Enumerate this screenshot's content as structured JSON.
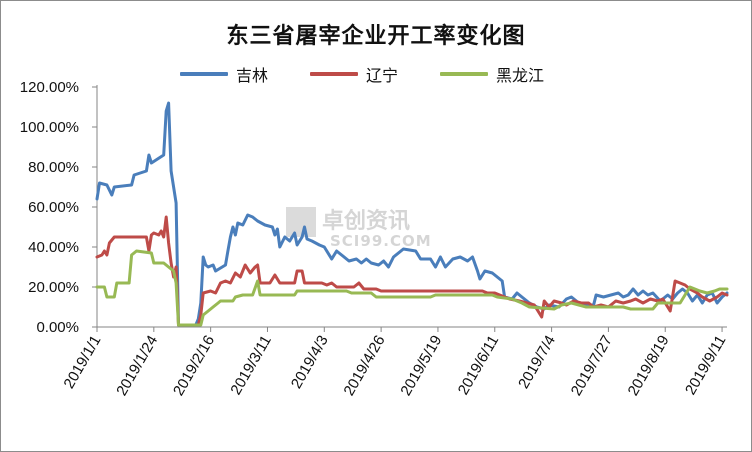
{
  "chart_data": {
    "type": "line",
    "title": "东三省屠宰企业开工率变化图",
    "xlabel": "",
    "ylabel": "",
    "ylim": [
      0,
      1.2
    ],
    "yticks": [
      "0.00%",
      "20.00%",
      "40.00%",
      "60.00%",
      "80.00%",
      "100.00%",
      "120.00%"
    ],
    "xrange": [
      "2019-01-01",
      "2019-09-13"
    ],
    "xticks": [
      "2019/1/1",
      "2019/1/24",
      "2019/2/16",
      "2019/3/11",
      "2019/4/3",
      "2019/4/26",
      "2019/5/19",
      "2019/6/11",
      "2019/7/4",
      "2019/7/27",
      "2019/8/19",
      "2019/9/11"
    ],
    "grid": false,
    "legend_position": "top",
    "watermark": {
      "cn": "卓创资讯",
      "en": "SCI99.COM"
    },
    "series": [
      {
        "name": "吉林",
        "color": "#4a7ebb",
        "points": [
          [
            "2019-01-01",
            0.64
          ],
          [
            "2019-01-02",
            0.72
          ],
          [
            "2019-01-05",
            0.71
          ],
          [
            "2019-01-07",
            0.66
          ],
          [
            "2019-01-08",
            0.7
          ],
          [
            "2019-01-15",
            0.71
          ],
          [
            "2019-01-16",
            0.76
          ],
          [
            "2019-01-21",
            0.78
          ],
          [
            "2019-01-22",
            0.86
          ],
          [
            "2019-01-23",
            0.82
          ],
          [
            "2019-01-28",
            0.86
          ],
          [
            "2019-01-29",
            1.08
          ],
          [
            "2019-01-30",
            1.12
          ],
          [
            "2019-01-31",
            0.78
          ],
          [
            "2019-02-02",
            0.62
          ],
          [
            "2019-02-03",
            0.01
          ],
          [
            "2019-02-10",
            0.01
          ],
          [
            "2019-02-11",
            0.04
          ],
          [
            "2019-02-12",
            0.12
          ],
          [
            "2019-02-13",
            0.35
          ],
          [
            "2019-02-14",
            0.31
          ],
          [
            "2019-02-15",
            0.3
          ],
          [
            "2019-02-17",
            0.31
          ],
          [
            "2019-02-18",
            0.28
          ],
          [
            "2019-02-22",
            0.31
          ],
          [
            "2019-02-23",
            0.38
          ],
          [
            "2019-02-24",
            0.45
          ],
          [
            "2019-02-25",
            0.5
          ],
          [
            "2019-02-26",
            0.46
          ],
          [
            "2019-02-27",
            0.52
          ],
          [
            "2019-03-01",
            0.51
          ],
          [
            "2019-03-03",
            0.56
          ],
          [
            "2019-03-05",
            0.55
          ],
          [
            "2019-03-07",
            0.53
          ],
          [
            "2019-03-10",
            0.51
          ],
          [
            "2019-03-13",
            0.5
          ],
          [
            "2019-03-14",
            0.46
          ],
          [
            "2019-03-15",
            0.49
          ],
          [
            "2019-03-16",
            0.4
          ],
          [
            "2019-03-18",
            0.45
          ],
          [
            "2019-03-20",
            0.43
          ],
          [
            "2019-03-22",
            0.47
          ],
          [
            "2019-03-23",
            0.41
          ],
          [
            "2019-03-25",
            0.45
          ],
          [
            "2019-03-26",
            0.5
          ],
          [
            "2019-03-27",
            0.44
          ],
          [
            "2019-03-29",
            0.43
          ],
          [
            "2019-04-01",
            0.41
          ],
          [
            "2019-04-03",
            0.4
          ],
          [
            "2019-04-06",
            0.34
          ],
          [
            "2019-04-08",
            0.38
          ],
          [
            "2019-04-10",
            0.36
          ],
          [
            "2019-04-13",
            0.33
          ],
          [
            "2019-04-16",
            0.34
          ],
          [
            "2019-04-18",
            0.32
          ],
          [
            "2019-04-20",
            0.34
          ],
          [
            "2019-04-22",
            0.32
          ],
          [
            "2019-04-25",
            0.31
          ],
          [
            "2019-04-27",
            0.33
          ],
          [
            "2019-04-29",
            0.3
          ],
          [
            "2019-05-01",
            0.35
          ],
          [
            "2019-05-05",
            0.39
          ],
          [
            "2019-05-10",
            0.38
          ],
          [
            "2019-05-12",
            0.34
          ],
          [
            "2019-05-16",
            0.34
          ],
          [
            "2019-05-18",
            0.3
          ],
          [
            "2019-05-20",
            0.35
          ],
          [
            "2019-05-22",
            0.3
          ],
          [
            "2019-05-25",
            0.34
          ],
          [
            "2019-05-28",
            0.35
          ],
          [
            "2019-05-31",
            0.33
          ],
          [
            "2019-06-02",
            0.35
          ],
          [
            "2019-06-04",
            0.28
          ],
          [
            "2019-06-05",
            0.24
          ],
          [
            "2019-06-07",
            0.28
          ],
          [
            "2019-06-10",
            0.27
          ],
          [
            "2019-06-14",
            0.23
          ],
          [
            "2019-06-15",
            0.15
          ],
          [
            "2019-06-18",
            0.14
          ],
          [
            "2019-06-20",
            0.17
          ],
          [
            "2019-06-22",
            0.15
          ],
          [
            "2019-06-25",
            0.12
          ],
          [
            "2019-06-28",
            0.1
          ],
          [
            "2019-07-01",
            0.09
          ],
          [
            "2019-07-03",
            0.11
          ],
          [
            "2019-07-07",
            0.1
          ],
          [
            "2019-07-10",
            0.14
          ],
          [
            "2019-07-12",
            0.15
          ],
          [
            "2019-07-15",
            0.12
          ],
          [
            "2019-07-18",
            0.11
          ],
          [
            "2019-07-21",
            0.11
          ],
          [
            "2019-07-22",
            0.16
          ],
          [
            "2019-07-25",
            0.15
          ],
          [
            "2019-07-28",
            0.16
          ],
          [
            "2019-07-31",
            0.17
          ],
          [
            "2019-08-02",
            0.15
          ],
          [
            "2019-08-04",
            0.16
          ],
          [
            "2019-08-06",
            0.19
          ],
          [
            "2019-08-08",
            0.16
          ],
          [
            "2019-08-10",
            0.18
          ],
          [
            "2019-08-12",
            0.16
          ],
          [
            "2019-08-14",
            0.17
          ],
          [
            "2019-08-17",
            0.13
          ],
          [
            "2019-08-20",
            0.16
          ],
          [
            "2019-08-22",
            0.14
          ],
          [
            "2019-08-24",
            0.17
          ],
          [
            "2019-08-26",
            0.19
          ],
          [
            "2019-08-28",
            0.17
          ],
          [
            "2019-08-30",
            0.13
          ],
          [
            "2019-09-01",
            0.16
          ],
          [
            "2019-09-03",
            0.12
          ],
          [
            "2019-09-05",
            0.16
          ],
          [
            "2019-09-07",
            0.17
          ],
          [
            "2019-09-09",
            0.12
          ],
          [
            "2019-09-11",
            0.15
          ],
          [
            "2019-09-13",
            0.17
          ]
        ]
      },
      {
        "name": "辽宁",
        "color": "#be4b48",
        "points": [
          [
            "2019-01-01",
            0.35
          ],
          [
            "2019-01-03",
            0.36
          ],
          [
            "2019-01-04",
            0.38
          ],
          [
            "2019-01-05",
            0.36
          ],
          [
            "2019-01-06",
            0.42
          ],
          [
            "2019-01-08",
            0.45
          ],
          [
            "2019-01-21",
            0.45
          ],
          [
            "2019-01-22",
            0.38
          ],
          [
            "2019-01-23",
            0.46
          ],
          [
            "2019-01-24",
            0.47
          ],
          [
            "2019-01-26",
            0.46
          ],
          [
            "2019-01-27",
            0.48
          ],
          [
            "2019-01-28",
            0.45
          ],
          [
            "2019-01-29",
            0.55
          ],
          [
            "2019-01-30",
            0.42
          ],
          [
            "2019-01-31",
            0.32
          ],
          [
            "2019-02-01",
            0.25
          ],
          [
            "2019-02-02",
            0.3
          ],
          [
            "2019-02-03",
            0.01
          ],
          [
            "2019-02-11",
            0.01
          ],
          [
            "2019-02-12",
            0.06
          ],
          [
            "2019-02-13",
            0.17
          ],
          [
            "2019-02-16",
            0.18
          ],
          [
            "2019-02-18",
            0.17
          ],
          [
            "2019-02-20",
            0.22
          ],
          [
            "2019-02-22",
            0.23
          ],
          [
            "2019-02-24",
            0.22
          ],
          [
            "2019-02-26",
            0.27
          ],
          [
            "2019-02-28",
            0.25
          ],
          [
            "2019-03-02",
            0.31
          ],
          [
            "2019-03-04",
            0.27
          ],
          [
            "2019-03-06",
            0.3
          ],
          [
            "2019-03-07",
            0.31
          ],
          [
            "2019-03-08",
            0.22
          ],
          [
            "2019-03-12",
            0.22
          ],
          [
            "2019-03-14",
            0.26
          ],
          [
            "2019-03-16",
            0.22
          ],
          [
            "2019-03-22",
            0.22
          ],
          [
            "2019-03-23",
            0.28
          ],
          [
            "2019-03-25",
            0.28
          ],
          [
            "2019-03-26",
            0.22
          ],
          [
            "2019-04-02",
            0.22
          ],
          [
            "2019-04-04",
            0.21
          ],
          [
            "2019-04-06",
            0.22
          ],
          [
            "2019-04-08",
            0.2
          ],
          [
            "2019-04-15",
            0.2
          ],
          [
            "2019-04-17",
            0.22
          ],
          [
            "2019-04-19",
            0.19
          ],
          [
            "2019-04-24",
            0.19
          ],
          [
            "2019-04-26",
            0.18
          ],
          [
            "2019-05-01",
            0.18
          ],
          [
            "2019-06-06",
            0.18
          ],
          [
            "2019-06-08",
            0.17
          ],
          [
            "2019-06-11",
            0.17
          ],
          [
            "2019-06-13",
            0.16
          ],
          [
            "2019-06-17",
            0.14
          ],
          [
            "2019-06-21",
            0.13
          ],
          [
            "2019-06-24",
            0.12
          ],
          [
            "2019-06-27",
            0.11
          ],
          [
            "2019-06-30",
            0.05
          ],
          [
            "2019-07-01",
            0.13
          ],
          [
            "2019-07-03",
            0.1
          ],
          [
            "2019-07-05",
            0.13
          ],
          [
            "2019-07-08",
            0.12
          ],
          [
            "2019-07-10",
            0.11
          ],
          [
            "2019-07-13",
            0.13
          ],
          [
            "2019-07-16",
            0.12
          ],
          [
            "2019-07-19",
            0.12
          ],
          [
            "2019-07-21",
            0.1
          ],
          [
            "2019-07-24",
            0.11
          ],
          [
            "2019-07-27",
            0.1
          ],
          [
            "2019-07-30",
            0.13
          ],
          [
            "2019-08-02",
            0.12
          ],
          [
            "2019-08-05",
            0.13
          ],
          [
            "2019-08-07",
            0.14
          ],
          [
            "2019-08-10",
            0.12
          ],
          [
            "2019-08-13",
            0.14
          ],
          [
            "2019-08-16",
            0.13
          ],
          [
            "2019-08-18",
            0.14
          ],
          [
            "2019-08-21",
            0.08
          ],
          [
            "2019-08-23",
            0.23
          ],
          [
            "2019-08-25",
            0.22
          ],
          [
            "2019-08-27",
            0.21
          ],
          [
            "2019-08-29",
            0.19
          ],
          [
            "2019-09-01",
            0.17
          ],
          [
            "2019-09-03",
            0.15
          ],
          [
            "2019-09-06",
            0.13
          ],
          [
            "2019-09-09",
            0.15
          ],
          [
            "2019-09-11",
            0.17
          ],
          [
            "2019-09-13",
            0.16
          ]
        ]
      },
      {
        "name": "黑龙江",
        "color": "#98b954",
        "points": [
          [
            "2019-01-01",
            0.2
          ],
          [
            "2019-01-04",
            0.2
          ],
          [
            "2019-01-05",
            0.15
          ],
          [
            "2019-01-08",
            0.15
          ],
          [
            "2019-01-09",
            0.22
          ],
          [
            "2019-01-14",
            0.22
          ],
          [
            "2019-01-15",
            0.36
          ],
          [
            "2019-01-17",
            0.38
          ],
          [
            "2019-01-23",
            0.37
          ],
          [
            "2019-01-24",
            0.32
          ],
          [
            "2019-01-28",
            0.32
          ],
          [
            "2019-01-30",
            0.3
          ],
          [
            "2019-02-01",
            0.28
          ],
          [
            "2019-02-02",
            0.22
          ],
          [
            "2019-02-03",
            0.01
          ],
          [
            "2019-02-12",
            0.01
          ],
          [
            "2019-02-13",
            0.06
          ],
          [
            "2019-02-15",
            0.08
          ],
          [
            "2019-02-17",
            0.1
          ],
          [
            "2019-02-19",
            0.12
          ],
          [
            "2019-02-20",
            0.13
          ],
          [
            "2019-02-25",
            0.13
          ],
          [
            "2019-02-26",
            0.15
          ],
          [
            "2019-03-01",
            0.16
          ],
          [
            "2019-03-05",
            0.16
          ],
          [
            "2019-03-07",
            0.23
          ],
          [
            "2019-03-08",
            0.16
          ],
          [
            "2019-03-22",
            0.16
          ],
          [
            "2019-03-23",
            0.18
          ],
          [
            "2019-04-12",
            0.18
          ],
          [
            "2019-04-14",
            0.17
          ],
          [
            "2019-04-22",
            0.17
          ],
          [
            "2019-04-24",
            0.15
          ],
          [
            "2019-05-05",
            0.15
          ],
          [
            "2019-05-16",
            0.15
          ],
          [
            "2019-05-18",
            0.16
          ],
          [
            "2019-06-10",
            0.16
          ],
          [
            "2019-06-12",
            0.15
          ],
          [
            "2019-06-18",
            0.14
          ],
          [
            "2019-06-22",
            0.12
          ],
          [
            "2019-06-25",
            0.1
          ],
          [
            "2019-07-05",
            0.09
          ],
          [
            "2019-07-08",
            0.11
          ],
          [
            "2019-07-12",
            0.12
          ],
          [
            "2019-07-18",
            0.1
          ],
          [
            "2019-08-02",
            0.1
          ],
          [
            "2019-08-05",
            0.09
          ],
          [
            "2019-08-14",
            0.09
          ],
          [
            "2019-08-16",
            0.12
          ],
          [
            "2019-08-25",
            0.12
          ],
          [
            "2019-08-27",
            0.16
          ],
          [
            "2019-08-29",
            0.2
          ],
          [
            "2019-08-31",
            0.19
          ],
          [
            "2019-09-02",
            0.18
          ],
          [
            "2019-09-05",
            0.17
          ],
          [
            "2019-09-08",
            0.18
          ],
          [
            "2019-09-10",
            0.19
          ],
          [
            "2019-09-13",
            0.19
          ]
        ]
      }
    ]
  }
}
